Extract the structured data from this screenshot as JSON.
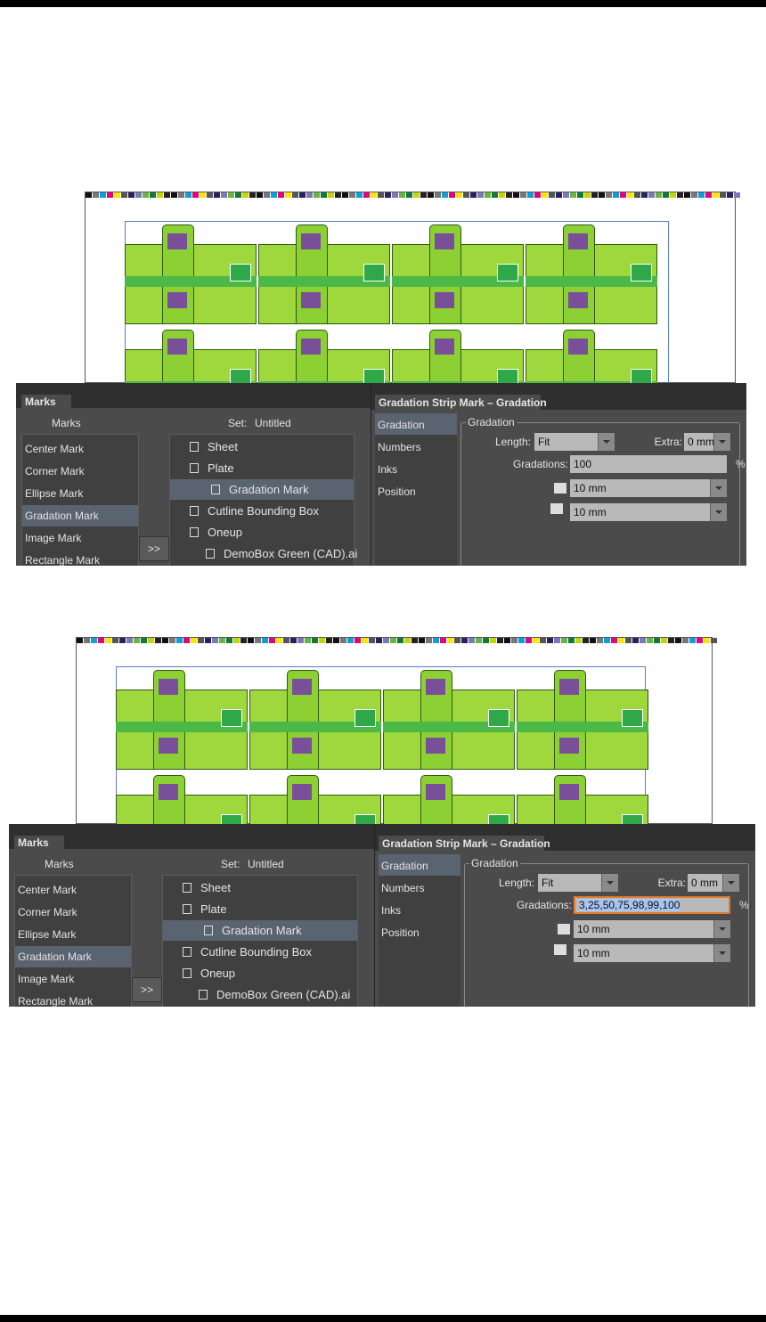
{
  "screenshots": [
    {
      "marks_panel": {
        "tab": "Marks",
        "list_header": "Marks",
        "set_label": "Set:",
        "set_value": "Untitled",
        "mark_types": [
          "Center Mark",
          "Corner Mark",
          "Ellipse Mark",
          "Gradation Mark",
          "Image Mark",
          "Rectangle Mark"
        ],
        "add_button": ">>",
        "tree": [
          "Sheet",
          "Plate",
          "Gradation Mark",
          "Cutline Bounding Box",
          "Oneup",
          "DemoBox Green (CAD).ai"
        ]
      },
      "gradation_panel": {
        "tab": "Gradation Strip Mark – Gradation",
        "sections": [
          "Gradation",
          "Numbers",
          "Inks",
          "Position"
        ],
        "group_title": "Gradation",
        "length_label": "Length:",
        "length_value": "Fit",
        "extra_label": "Extra:",
        "extra_value": "0 mm",
        "gradations_label": "Gradations:",
        "gradations_value": "100",
        "percent": "%",
        "height_value": "10 mm",
        "width_value": "10 mm"
      }
    },
    {
      "marks_panel": {
        "tab": "Marks",
        "list_header": "Marks",
        "set_label": "Set:",
        "set_value": "Untitled",
        "mark_types": [
          "Center Mark",
          "Corner Mark",
          "Ellipse Mark",
          "Gradation Mark",
          "Image Mark",
          "Rectangle Mark"
        ],
        "add_button": ">>",
        "tree": [
          "Sheet",
          "Plate",
          "Gradation Mark",
          "Cutline Bounding Box",
          "Oneup",
          "DemoBox Green (CAD).ai"
        ]
      },
      "gradation_panel": {
        "tab": "Gradation Strip Mark – Gradation",
        "sections": [
          "Gradation",
          "Numbers",
          "Inks",
          "Position"
        ],
        "group_title": "Gradation",
        "length_label": "Length:",
        "length_value": "Fit",
        "extra_label": "Extra:",
        "extra_value": "0 mm",
        "gradations_label": "Gradations:",
        "gradations_value": "3,25,50,75,98,99,100",
        "percent": "%",
        "height_value": "10 mm",
        "width_value": "10 mm"
      }
    }
  ]
}
